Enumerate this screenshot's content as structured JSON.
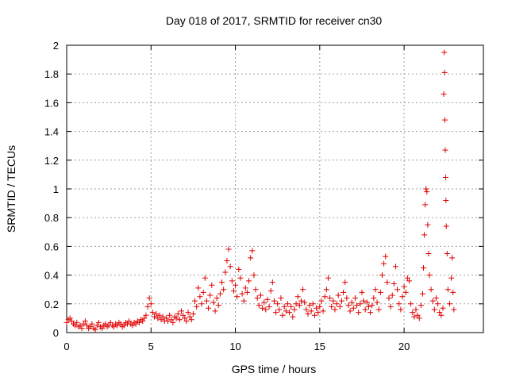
{
  "chart_data": {
    "type": "scatter",
    "title": "Day 018 of 2017, SRMTID for receiver cn30",
    "xlabel": "GPS time / hours",
    "ylabel": "SRMTID / TECUs",
    "xlim": [
      0,
      24.7
    ],
    "ylim": [
      0,
      2
    ],
    "xticks": [
      0,
      5,
      10,
      15,
      20
    ],
    "xtick_labels": [
      "0",
      "5",
      "10",
      "15",
      "20"
    ],
    "yticks": [
      0,
      0.2,
      0.4,
      0.6,
      0.8,
      1.0,
      1.2,
      1.4,
      1.6,
      1.8,
      2.0
    ],
    "ytick_labels": [
      "0",
      "0.2",
      "0.4",
      "0.6",
      "0.8",
      "1",
      "1.2",
      "1.4",
      "1.6",
      "1.8",
      "2"
    ],
    "grid": true,
    "marker": "+",
    "marker_color": "#e00000",
    "series": [
      {
        "name": "SRMTID",
        "points": [
          [
            0.0,
            0.07
          ],
          [
            0.1,
            0.09
          ],
          [
            0.2,
            0.1
          ],
          [
            0.3,
            0.08
          ],
          [
            0.4,
            0.06
          ],
          [
            0.5,
            0.05
          ],
          [
            0.6,
            0.07
          ],
          [
            0.7,
            0.04
          ],
          [
            0.8,
            0.05
          ],
          [
            0.9,
            0.03
          ],
          [
            1.0,
            0.06
          ],
          [
            1.1,
            0.08
          ],
          [
            1.2,
            0.05
          ],
          [
            1.3,
            0.03
          ],
          [
            1.4,
            0.04
          ],
          [
            1.5,
            0.06
          ],
          [
            1.6,
            0.03
          ],
          [
            1.7,
            0.02
          ],
          [
            1.8,
            0.05
          ],
          [
            1.9,
            0.07
          ],
          [
            2.0,
            0.04
          ],
          [
            2.1,
            0.03
          ],
          [
            2.2,
            0.05
          ],
          [
            2.3,
            0.06
          ],
          [
            2.4,
            0.04
          ],
          [
            2.5,
            0.05
          ],
          [
            2.6,
            0.07
          ],
          [
            2.7,
            0.05
          ],
          [
            2.8,
            0.04
          ],
          [
            2.9,
            0.06
          ],
          [
            3.0,
            0.05
          ],
          [
            3.1,
            0.07
          ],
          [
            3.2,
            0.06
          ],
          [
            3.3,
            0.04
          ],
          [
            3.4,
            0.05
          ],
          [
            3.5,
            0.07
          ],
          [
            3.6,
            0.06
          ],
          [
            3.7,
            0.08
          ],
          [
            3.8,
            0.06
          ],
          [
            3.9,
            0.05
          ],
          [
            4.0,
            0.07
          ],
          [
            4.1,
            0.06
          ],
          [
            4.2,
            0.08
          ],
          [
            4.3,
            0.07
          ],
          [
            4.4,
            0.09
          ],
          [
            4.5,
            0.08
          ],
          [
            4.6,
            0.1
          ],
          [
            4.7,
            0.12
          ],
          [
            4.8,
            0.18
          ],
          [
            4.9,
            0.24
          ],
          [
            5.0,
            0.2
          ],
          [
            5.1,
            0.14
          ],
          [
            5.2,
            0.11
          ],
          [
            5.3,
            0.13
          ],
          [
            5.4,
            0.1
          ],
          [
            5.5,
            0.12
          ],
          [
            5.6,
            0.09
          ],
          [
            5.7,
            0.11
          ],
          [
            5.8,
            0.08
          ],
          [
            5.9,
            0.1
          ],
          [
            6.0,
            0.08
          ],
          [
            6.1,
            0.12
          ],
          [
            6.2,
            0.09
          ],
          [
            6.3,
            0.07
          ],
          [
            6.4,
            0.11
          ],
          [
            6.5,
            0.1
          ],
          [
            6.6,
            0.13
          ],
          [
            6.7,
            0.09
          ],
          [
            6.8,
            0.15
          ],
          [
            6.9,
            0.12
          ],
          [
            7.0,
            0.1
          ],
          [
            7.1,
            0.08
          ],
          [
            7.2,
            0.14
          ],
          [
            7.3,
            0.11
          ],
          [
            7.4,
            0.09
          ],
          [
            7.5,
            0.13
          ],
          [
            7.6,
            0.22
          ],
          [
            7.7,
            0.18
          ],
          [
            7.8,
            0.31
          ],
          [
            7.9,
            0.25
          ],
          [
            8.0,
            0.2
          ],
          [
            8.1,
            0.28
          ],
          [
            8.2,
            0.38
          ],
          [
            8.3,
            0.22
          ],
          [
            8.4,
            0.17
          ],
          [
            8.5,
            0.26
          ],
          [
            8.6,
            0.33
          ],
          [
            8.7,
            0.21
          ],
          [
            8.8,
            0.15
          ],
          [
            8.9,
            0.24
          ],
          [
            9.0,
            0.19
          ],
          [
            9.1,
            0.27
          ],
          [
            9.2,
            0.35
          ],
          [
            9.3,
            0.3
          ],
          [
            9.4,
            0.42
          ],
          [
            9.5,
            0.5
          ],
          [
            9.6,
            0.58
          ],
          [
            9.7,
            0.46
          ],
          [
            9.8,
            0.36
          ],
          [
            9.9,
            0.29
          ],
          [
            10.0,
            0.33
          ],
          [
            10.1,
            0.25
          ],
          [
            10.2,
            0.44
          ],
          [
            10.3,
            0.38
          ],
          [
            10.4,
            0.27
          ],
          [
            10.5,
            0.22
          ],
          [
            10.6,
            0.31
          ],
          [
            10.7,
            0.28
          ],
          [
            10.8,
            0.36
          ],
          [
            10.9,
            0.52
          ],
          [
            11.0,
            0.57
          ],
          [
            11.1,
            0.4
          ],
          [
            11.2,
            0.3
          ],
          [
            11.3,
            0.24
          ],
          [
            11.4,
            0.19
          ],
          [
            11.5,
            0.26
          ],
          [
            11.6,
            0.17
          ],
          [
            11.7,
            0.21
          ],
          [
            11.8,
            0.16
          ],
          [
            11.9,
            0.23
          ],
          [
            12.0,
            0.18
          ],
          [
            12.1,
            0.29
          ],
          [
            12.2,
            0.35
          ],
          [
            12.3,
            0.22
          ],
          [
            12.4,
            0.14
          ],
          [
            12.5,
            0.2
          ],
          [
            12.6,
            0.16
          ],
          [
            12.7,
            0.24
          ],
          [
            12.8,
            0.12
          ],
          [
            12.9,
            0.18
          ],
          [
            13.0,
            0.15
          ],
          [
            13.1,
            0.2
          ],
          [
            13.2,
            0.14
          ],
          [
            13.3,
            0.18
          ],
          [
            13.4,
            0.11
          ],
          [
            13.5,
            0.16
          ],
          [
            13.6,
            0.2
          ],
          [
            13.7,
            0.25
          ],
          [
            13.8,
            0.19
          ],
          [
            13.9,
            0.22
          ],
          [
            14.0,
            0.3
          ],
          [
            14.1,
            0.21
          ],
          [
            14.2,
            0.16
          ],
          [
            14.3,
            0.13
          ],
          [
            14.4,
            0.19
          ],
          [
            14.5,
            0.15
          ],
          [
            14.6,
            0.2
          ],
          [
            14.7,
            0.12
          ],
          [
            14.8,
            0.17
          ],
          [
            14.9,
            0.14
          ],
          [
            15.0,
            0.18
          ],
          [
            15.1,
            0.22
          ],
          [
            15.2,
            0.15
          ],
          [
            15.3,
            0.25
          ],
          [
            15.4,
            0.3
          ],
          [
            15.5,
            0.38
          ],
          [
            15.6,
            0.24
          ],
          [
            15.7,
            0.18
          ],
          [
            15.8,
            0.22
          ],
          [
            15.9,
            0.16
          ],
          [
            16.0,
            0.2
          ],
          [
            16.1,
            0.26
          ],
          [
            16.2,
            0.18
          ],
          [
            16.3,
            0.22
          ],
          [
            16.4,
            0.28
          ],
          [
            16.5,
            0.35
          ],
          [
            16.6,
            0.24
          ],
          [
            16.7,
            0.19
          ],
          [
            16.8,
            0.15
          ],
          [
            16.9,
            0.21
          ],
          [
            17.0,
            0.17
          ],
          [
            17.1,
            0.24
          ],
          [
            17.2,
            0.19
          ],
          [
            17.3,
            0.14
          ],
          [
            17.4,
            0.2
          ],
          [
            17.5,
            0.28
          ],
          [
            17.6,
            0.22
          ],
          [
            17.7,
            0.16
          ],
          [
            17.8,
            0.21
          ],
          [
            17.9,
            0.18
          ],
          [
            18.0,
            0.14
          ],
          [
            18.1,
            0.19
          ],
          [
            18.2,
            0.24
          ],
          [
            18.3,
            0.3
          ],
          [
            18.4,
            0.21
          ],
          [
            18.5,
            0.16
          ],
          [
            18.6,
            0.28
          ],
          [
            18.7,
            0.4
          ],
          [
            18.8,
            0.48
          ],
          [
            18.9,
            0.53
          ],
          [
            19.0,
            0.35
          ],
          [
            19.1,
            0.24
          ],
          [
            19.2,
            0.18
          ],
          [
            19.3,
            0.26
          ],
          [
            19.4,
            0.34
          ],
          [
            19.5,
            0.46
          ],
          [
            19.6,
            0.3
          ],
          [
            19.7,
            0.2
          ],
          [
            19.8,
            0.16
          ],
          [
            19.9,
            0.25
          ],
          [
            20.0,
            0.32
          ],
          [
            20.1,
            0.28
          ],
          [
            20.2,
            0.38
          ],
          [
            20.3,
            0.36
          ],
          [
            20.4,
            0.2
          ],
          [
            20.5,
            0.14
          ],
          [
            20.6,
            0.11
          ],
          [
            20.7,
            0.16
          ],
          [
            20.8,
            0.12
          ],
          [
            20.9,
            0.1
          ],
          [
            21.0,
            0.19
          ],
          [
            21.1,
            0.27
          ],
          [
            21.15,
            0.45
          ],
          [
            21.2,
            0.68
          ],
          [
            21.25,
            0.89
          ],
          [
            21.3,
            1.0
          ],
          [
            21.35,
            0.98
          ],
          [
            21.4,
            0.75
          ],
          [
            21.45,
            0.55
          ],
          [
            21.5,
            0.4
          ],
          [
            21.6,
            0.3
          ],
          [
            21.7,
            0.22
          ],
          [
            21.8,
            0.16
          ],
          [
            21.9,
            0.24
          ],
          [
            22.0,
            0.2
          ],
          [
            22.1,
            0.14
          ],
          [
            22.2,
            0.12
          ],
          [
            22.3,
            0.17
          ],
          [
            22.35,
            1.66
          ],
          [
            22.38,
            1.95
          ],
          [
            22.4,
            1.81
          ],
          [
            22.42,
            1.48
          ],
          [
            22.44,
            1.27
          ],
          [
            22.46,
            1.08
          ],
          [
            22.48,
            0.92
          ],
          [
            22.5,
            0.74
          ],
          [
            22.55,
            0.55
          ],
          [
            22.6,
            0.3
          ],
          [
            22.7,
            0.2
          ],
          [
            22.8,
            0.38
          ],
          [
            22.85,
            0.52
          ],
          [
            22.9,
            0.28
          ],
          [
            22.95,
            0.16
          ]
        ]
      }
    ]
  }
}
